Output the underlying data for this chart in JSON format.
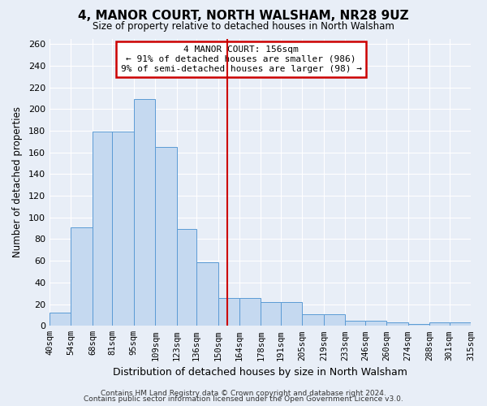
{
  "title": "4, MANOR COURT, NORTH WALSHAM, NR28 9UZ",
  "subtitle": "Size of property relative to detached houses in North Walsham",
  "xlabel": "Distribution of detached houses by size in North Walsham",
  "ylabel": "Number of detached properties",
  "bar_vals": [
    12,
    91,
    179,
    179,
    209,
    165,
    89,
    59,
    26,
    26,
    22,
    22,
    11,
    11,
    5,
    5,
    3,
    2,
    3,
    3
  ],
  "bin_edges": [
    40,
    54,
    68,
    81,
    95,
    109,
    123,
    136,
    150,
    164,
    178,
    191,
    205,
    219,
    233,
    246,
    260,
    274,
    288,
    301,
    315
  ],
  "tick_labels": [
    "40sqm",
    "54sqm",
    "68sqm",
    "81sqm",
    "95sqm",
    "109sqm",
    "123sqm",
    "136sqm",
    "150sqm",
    "164sqm",
    "178sqm",
    "191sqm",
    "205sqm",
    "219sqm",
    "233sqm",
    "246sqm",
    "260sqm",
    "274sqm",
    "288sqm",
    "301sqm",
    "315sqm"
  ],
  "bar_color": "#c5d9f0",
  "bar_edge_color": "#5b9bd5",
  "property_line_x": 156,
  "property_line_color": "#cc0000",
  "annotation_title": "4 MANOR COURT: 156sqm",
  "annotation_line1": "← 91% of detached houses are smaller (986)",
  "annotation_line2": "9% of semi-detached houses are larger (98) →",
  "annotation_box_color": "#cc0000",
  "ylim": [
    0,
    265
  ],
  "yticks": [
    0,
    20,
    40,
    60,
    80,
    100,
    120,
    140,
    160,
    180,
    200,
    220,
    240,
    260
  ],
  "footer1": "Contains HM Land Registry data © Crown copyright and database right 2024.",
  "footer2": "Contains public sector information licensed under the Open Government Licence v3.0.",
  "bg_color": "#e8eef7",
  "grid_color": "#ffffff"
}
